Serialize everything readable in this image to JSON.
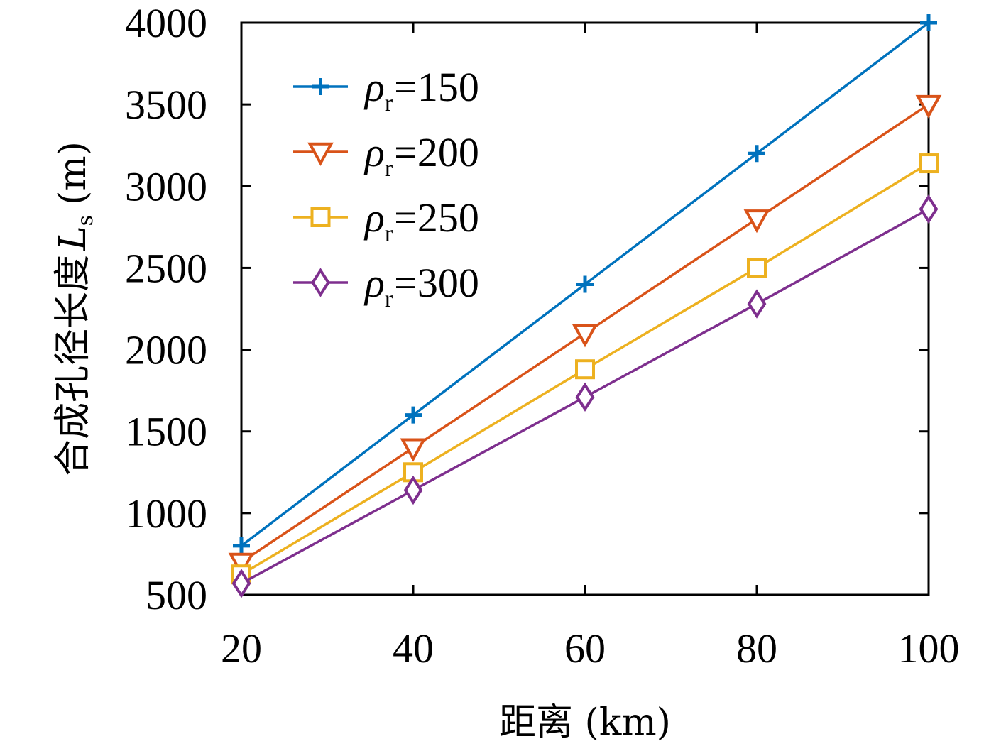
{
  "chart_data": {
    "type": "line",
    "xlabel": "距离 (km)",
    "ylabel_main": "合成孔径长度",
    "ylabel_symbol": "L",
    "ylabel_subscript": "s",
    "ylabel_unit": "(m)",
    "x": [
      20,
      40,
      60,
      80,
      100
    ],
    "xlim": [
      20,
      100
    ],
    "ylim": [
      500,
      4000
    ],
    "xticks": [
      "20",
      "40",
      "60",
      "80",
      "100"
    ],
    "yticks": [
      "500",
      "1000",
      "1500",
      "2000",
      "2500",
      "3000",
      "3500",
      "4000"
    ],
    "grid": false,
    "legend_position": "top-left",
    "series": [
      {
        "name": "ρr=150",
        "legend_symbol": "ρ",
        "legend_sub": "r",
        "legend_value": "=150",
        "marker": "plus",
        "color": "#0072BD",
        "values": [
          800,
          1600,
          2400,
          3200,
          4000
        ]
      },
      {
        "name": "ρr=200",
        "legend_symbol": "ρ",
        "legend_sub": "r",
        "legend_value": "=200",
        "marker": "triangle-down",
        "color": "#D95319",
        "values": [
          700,
          1400,
          2100,
          2800,
          3500
        ]
      },
      {
        "name": "ρr=250",
        "legend_symbol": "ρ",
        "legend_sub": "r",
        "legend_value": "=250",
        "marker": "square",
        "color": "#EDB120",
        "values": [
          625,
          1250,
          1880,
          2500,
          3140
        ]
      },
      {
        "name": "ρr=300",
        "legend_symbol": "ρ",
        "legend_sub": "r",
        "legend_value": "=300",
        "marker": "diamond",
        "color": "#7E2F8E",
        "values": [
          570,
          1140,
          1710,
          2280,
          2860
        ]
      }
    ]
  }
}
